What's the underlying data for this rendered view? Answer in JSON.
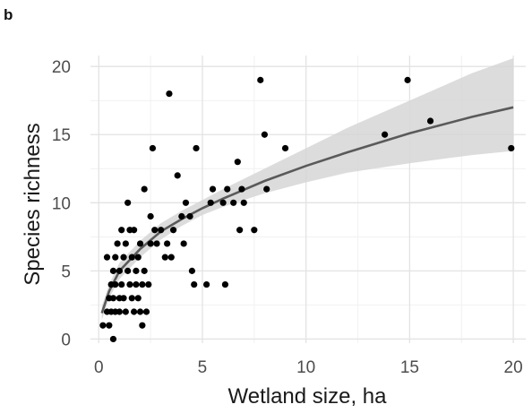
{
  "panel_label": "b",
  "chart_data": {
    "type": "scatter",
    "title": "",
    "xlabel": "Wetland size, ha",
    "ylabel": "Species richness",
    "xlim": [
      -0.4,
      20.6
    ],
    "ylim": [
      -0.3,
      20.8
    ],
    "x_ticks": [
      0,
      5,
      10,
      15,
      20
    ],
    "y_ticks": [
      0,
      5,
      10,
      15,
      20
    ],
    "grid": true,
    "legend": "none",
    "colors": {
      "points": "#000000",
      "fit_line": "#5a5a5a",
      "confidence_band": "#d6d6d6",
      "grid": "#e3e3e3"
    },
    "fit": {
      "kind": "power-law trend with confidence band",
      "x": [
        0.15,
        0.5,
        1,
        2,
        3,
        4,
        5,
        6,
        8,
        10,
        12,
        15,
        18,
        20
      ],
      "y": [
        1.9,
        3.5,
        5.0,
        6.6,
        7.9,
        8.8,
        9.6,
        10.3,
        11.6,
        12.7,
        13.7,
        15.1,
        16.3,
        17.0
      ],
      "lower": [
        1.4,
        3.0,
        4.4,
        6.0,
        7.3,
        8.3,
        9.1,
        9.7,
        10.7,
        11.5,
        12.2,
        12.9,
        13.5,
        13.8
      ],
      "upper": [
        2.4,
        4.0,
        5.6,
        7.2,
        8.5,
        9.4,
        10.2,
        11.0,
        12.5,
        14.0,
        15.5,
        17.5,
        19.5,
        20.6
      ]
    },
    "points": [
      {
        "x": 0.2,
        "y": 1
      },
      {
        "x": 0.4,
        "y": 6
      },
      {
        "x": 0.4,
        "y": 2
      },
      {
        "x": 0.5,
        "y": 3
      },
      {
        "x": 0.5,
        "y": 1
      },
      {
        "x": 0.6,
        "y": 4
      },
      {
        "x": 0.6,
        "y": 2
      },
      {
        "x": 0.7,
        "y": 5
      },
      {
        "x": 0.7,
        "y": 3
      },
      {
        "x": 0.7,
        "y": 0
      },
      {
        "x": 0.8,
        "y": 6
      },
      {
        "x": 0.8,
        "y": 4
      },
      {
        "x": 0.8,
        "y": 2
      },
      {
        "x": 0.9,
        "y": 7
      },
      {
        "x": 1.0,
        "y": 5
      },
      {
        "x": 1.0,
        "y": 3
      },
      {
        "x": 1.0,
        "y": 2
      },
      {
        "x": 1.1,
        "y": 8
      },
      {
        "x": 1.1,
        "y": 4
      },
      {
        "x": 1.2,
        "y": 6
      },
      {
        "x": 1.2,
        "y": 3
      },
      {
        "x": 1.3,
        "y": 7
      },
      {
        "x": 1.3,
        "y": 2
      },
      {
        "x": 1.4,
        "y": 10
      },
      {
        "x": 1.4,
        "y": 5
      },
      {
        "x": 1.5,
        "y": 8
      },
      {
        "x": 1.5,
        "y": 4
      },
      {
        "x": 1.6,
        "y": 6
      },
      {
        "x": 1.6,
        "y": 3
      },
      {
        "x": 1.7,
        "y": 8
      },
      {
        "x": 1.7,
        "y": 2
      },
      {
        "x": 1.8,
        "y": 5
      },
      {
        "x": 1.8,
        "y": 4
      },
      {
        "x": 1.9,
        "y": 6
      },
      {
        "x": 1.9,
        "y": 3
      },
      {
        "x": 2.0,
        "y": 7
      },
      {
        "x": 2.0,
        "y": 2
      },
      {
        "x": 2.1,
        "y": 4
      },
      {
        "x": 2.1,
        "y": 1
      },
      {
        "x": 2.2,
        "y": 11
      },
      {
        "x": 2.2,
        "y": 5
      },
      {
        "x": 2.3,
        "y": 2
      },
      {
        "x": 2.4,
        "y": 4
      },
      {
        "x": 2.5,
        "y": 9
      },
      {
        "x": 2.5,
        "y": 7
      },
      {
        "x": 2.6,
        "y": 14
      },
      {
        "x": 2.7,
        "y": 8
      },
      {
        "x": 2.8,
        "y": 7
      },
      {
        "x": 3.0,
        "y": 8
      },
      {
        "x": 3.2,
        "y": 6
      },
      {
        "x": 3.3,
        "y": 7
      },
      {
        "x": 3.4,
        "y": 18
      },
      {
        "x": 3.5,
        "y": 6
      },
      {
        "x": 3.6,
        "y": 8
      },
      {
        "x": 3.8,
        "y": 12
      },
      {
        "x": 4.0,
        "y": 9
      },
      {
        "x": 4.1,
        "y": 7
      },
      {
        "x": 4.2,
        "y": 10
      },
      {
        "x": 4.4,
        "y": 9
      },
      {
        "x": 4.5,
        "y": 5
      },
      {
        "x": 4.6,
        "y": 4
      },
      {
        "x": 4.7,
        "y": 14
      },
      {
        "x": 5.2,
        "y": 4
      },
      {
        "x": 5.4,
        "y": 10
      },
      {
        "x": 5.5,
        "y": 11
      },
      {
        "x": 6.0,
        "y": 10
      },
      {
        "x": 6.1,
        "y": 4
      },
      {
        "x": 6.2,
        "y": 11
      },
      {
        "x": 6.5,
        "y": 10
      },
      {
        "x": 6.7,
        "y": 13
      },
      {
        "x": 6.8,
        "y": 8
      },
      {
        "x": 6.9,
        "y": 11
      },
      {
        "x": 7.0,
        "y": 10
      },
      {
        "x": 7.5,
        "y": 8
      },
      {
        "x": 7.8,
        "y": 19
      },
      {
        "x": 8.0,
        "y": 15
      },
      {
        "x": 8.1,
        "y": 11
      },
      {
        "x": 9.0,
        "y": 14
      },
      {
        "x": 13.8,
        "y": 15
      },
      {
        "x": 14.9,
        "y": 19
      },
      {
        "x": 16.0,
        "y": 16
      },
      {
        "x": 19.9,
        "y": 14
      }
    ]
  }
}
